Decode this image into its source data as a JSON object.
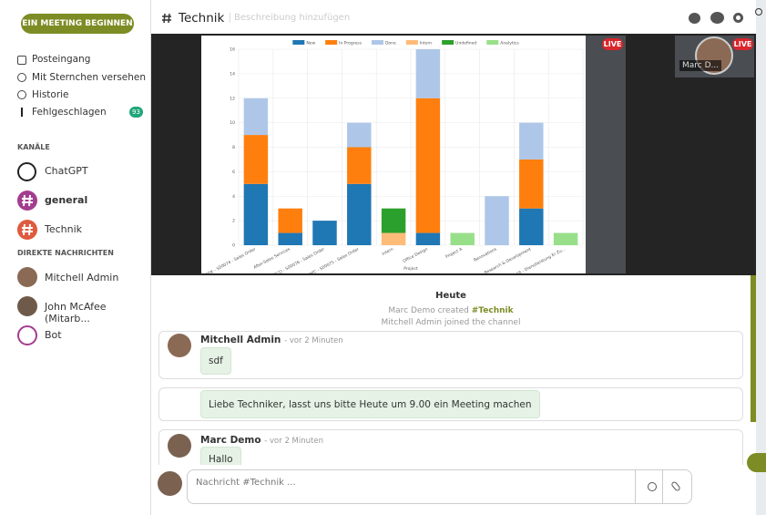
{
  "sidebar": {
    "start_meeting": "EIN MEETING BEGINNEN",
    "nav": [
      {
        "label": "Posteingang"
      },
      {
        "label": "Mit Sternchen versehen"
      },
      {
        "label": "Historie"
      },
      {
        "label": "Fehlgeschlagen",
        "badge": 93
      }
    ],
    "channels_title": "KANÄLE",
    "channels": [
      "ChatGPT",
      "general",
      "Technik"
    ],
    "dm_title": "DIREKTE NACHRICHTEN",
    "dms": [
      "Mitchell Admin",
      "John McAfee (Mitarb...",
      "Bot"
    ]
  },
  "header": {
    "title": "Technik",
    "description": "Beschreibung hinzufügen"
  },
  "call": {
    "live": [
      "LIVE",
      "LIVE"
    ],
    "participant": "Marc D..."
  },
  "thread": {
    "day": "Heute",
    "notifications": [
      {
        "text": "Marc Demo created",
        "link": "#Technik"
      },
      {
        "text": "Mitchell Admin joined the channel"
      }
    ],
    "messages": [
      {
        "author": "Mitchell Admin",
        "time": "- vor 2 Minuten",
        "body": "sdf"
      },
      {
        "body": "Liebe Techniker, lasst uns bitte Heute um 9.00 ein Meeting machen"
      },
      {
        "author": "Marc Demo",
        "time": "- vor 2 Minuten",
        "body": "Hallo"
      }
    ]
  },
  "composer": {
    "placeholder": "Nachricht #Technik ..."
  },
  "chart_data": {
    "type": "bar",
    "stacked": true,
    "x_label": "Project",
    "categories": [
      "ADK - S00074 - Sales Order",
      "After-Sales Services",
      "DECO - S00076 - Sales Order",
      "DPC - S00075 - Sales Order",
      "Intern",
      "Office Design",
      "Project A",
      "Renovations",
      "Research & Development",
      "S00068 - Dienstleistung Er Zu..."
    ],
    "series": [
      {
        "name": "New",
        "color": "#1f77b4",
        "values": [
          5,
          1,
          2,
          5,
          null,
          1,
          null,
          null,
          3,
          null
        ]
      },
      {
        "name": "In Progress",
        "color": "#ff7f0e",
        "values": [
          4,
          2,
          null,
          3,
          null,
          11,
          null,
          null,
          4,
          null
        ]
      },
      {
        "name": "Done",
        "color": "#aec7e8",
        "values": [
          3,
          null,
          null,
          2,
          null,
          4,
          null,
          4,
          3,
          null
        ]
      },
      {
        "name": "Intern",
        "color": "#ffbb78",
        "values": [
          null,
          null,
          null,
          null,
          1,
          null,
          null,
          null,
          null,
          null
        ]
      },
      {
        "name": "Undefined",
        "color": "#2ca02c",
        "values": [
          null,
          null,
          null,
          null,
          2,
          null,
          null,
          null,
          null,
          null
        ]
      },
      {
        "name": "Analytics",
        "color": "#98df8a",
        "values": [
          null,
          null,
          null,
          null,
          null,
          null,
          1,
          null,
          null,
          1
        ]
      }
    ],
    "ylim": [
      0,
      16
    ],
    "yticks": [
      0,
      2,
      4,
      6,
      8,
      10,
      12,
      14,
      16
    ],
    "grid": true
  }
}
